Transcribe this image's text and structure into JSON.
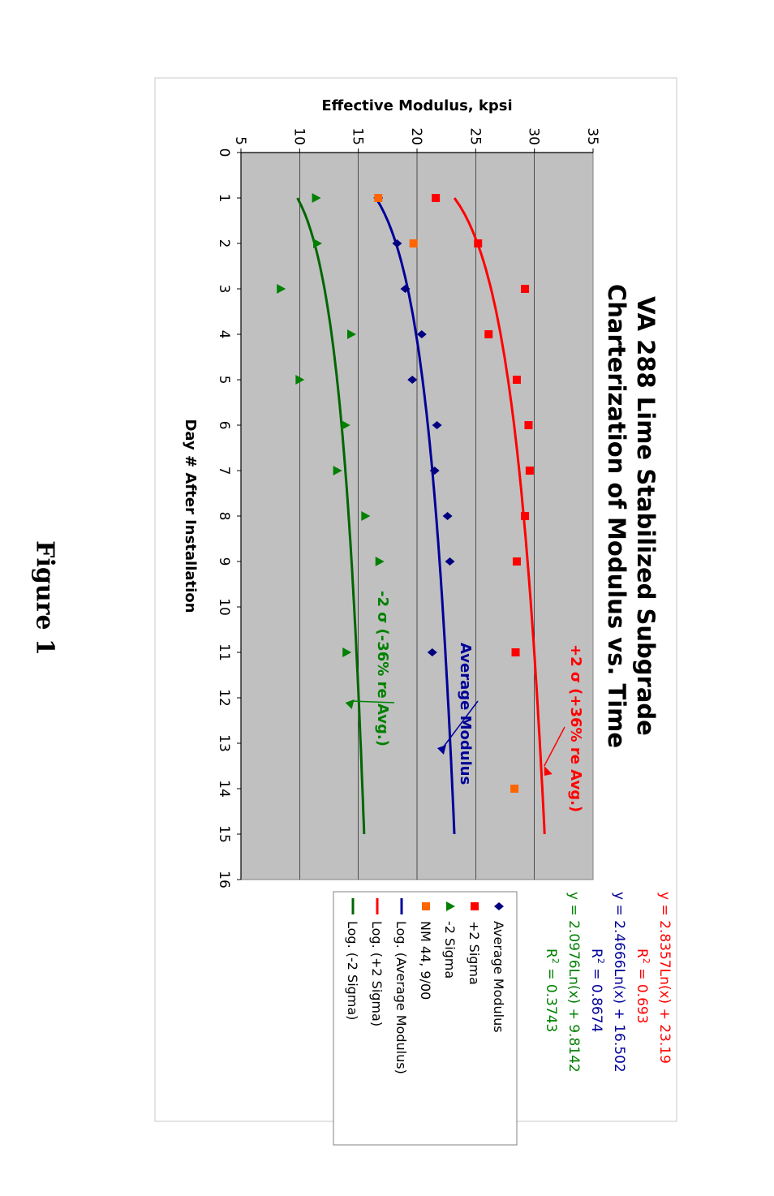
{
  "figure_label": "Figure 1",
  "chart_data": {
    "type": "scatter",
    "title": [
      "VA 288 Lime Stabilized Subgrade",
      "Charterization of Modulus vs. Time"
    ],
    "xlabel": "Day # After Installation",
    "ylabel": "Effective Modulus, kpsi",
    "xlim": [
      0,
      16
    ],
    "ylim": [
      5,
      35
    ],
    "x_ticks": [
      "0",
      "1",
      "2",
      "3",
      "4",
      "5",
      "6",
      "7",
      "8",
      "9",
      "10",
      "11",
      "12",
      "13",
      "14",
      "15",
      "16"
    ],
    "y_ticks": [
      "5",
      "10",
      "15",
      "20",
      "25",
      "30",
      "35"
    ],
    "grid": "horizontal",
    "plot_background": "#c0c0c0",
    "series": [
      {
        "name": "Average Modulus",
        "marker": "diamond",
        "color": "#000080",
        "x": [
          1,
          2,
          3,
          4,
          5,
          6,
          7,
          8,
          9,
          11
        ],
        "y": [
          16.7,
          18.3,
          19.0,
          20.4,
          19.6,
          21.7,
          21.5,
          22.6,
          22.8,
          21.3
        ]
      },
      {
        "name": "+2 Sigma",
        "marker": "square",
        "color": "#ff0000",
        "x": [
          1,
          2,
          3,
          4,
          5,
          6,
          7,
          8,
          9,
          11
        ],
        "y": [
          21.6,
          25.2,
          29.2,
          26.1,
          28.5,
          29.5,
          29.6,
          29.2,
          28.5,
          28.4
        ]
      },
      {
        "name": "-2 Sigma",
        "marker": "triangle",
        "color": "#008000",
        "x": [
          1,
          2,
          3,
          4,
          5,
          6,
          7,
          8,
          9,
          11
        ],
        "y": [
          11.4,
          11.5,
          8.4,
          14.4,
          10.0,
          13.9,
          13.2,
          15.6,
          16.8,
          14.0
        ]
      },
      {
        "name": "NM 44, 9/00",
        "marker": "square",
        "color": "#ff6600",
        "x": [
          1,
          2,
          14
        ],
        "y": [
          16.7,
          19.7,
          28.3
        ]
      }
    ],
    "trendlines": [
      {
        "name": "Log. (Average Modulus)",
        "color": "#000099",
        "a": 2.4666,
        "b": 16.502,
        "x_range": [
          1,
          15
        ]
      },
      {
        "name": "Log. (+2 Sigma)",
        "color": "#ff0000",
        "a": 2.8357,
        "b": 23.19,
        "x_range": [
          1,
          15
        ]
      },
      {
        "name": "Log. (-2 Sigma)",
        "color": "#006600",
        "a": 2.0976,
        "b": 9.8142,
        "x_range": [
          1,
          15
        ]
      }
    ],
    "equations": [
      {
        "eq": "y = 2.8357Ln(x) + 23.19",
        "r2_value": "= 0.693",
        "color": "#ff0000"
      },
      {
        "eq": "y = 2.4666Ln(x) + 16.502",
        "r2_value": "= 0.8674",
        "color": "#000099"
      },
      {
        "eq": "y = 2.0976Ln(x) + 9.8142",
        "r2_value": "= 0.3743",
        "color": "#008000"
      }
    ],
    "r2_label": "R",
    "r2_sup": "2",
    "annotations": [
      {
        "text": "+2 σ (+36% re Avg.)",
        "color": "#ff0000"
      },
      {
        "text": "Average Modulus",
        "color": "#000099"
      },
      {
        "text": "-2 σ (-36% re Avg.)",
        "color": "#008000"
      }
    ],
    "legend_position": "right",
    "legend": [
      {
        "label": "Average Modulus",
        "kind": "diamond",
        "color": "#000080"
      },
      {
        "label": "+2 Sigma",
        "kind": "square",
        "color": "#ff0000"
      },
      {
        "label": "-2 Sigma",
        "kind": "triangle",
        "color": "#008000"
      },
      {
        "label": "NM 44, 9/00",
        "kind": "square",
        "color": "#ff6600"
      },
      {
        "label": "Log. (Average Modulus)",
        "kind": "line",
        "color": "#000099"
      },
      {
        "label": "Log. (+2 Sigma)",
        "kind": "line",
        "color": "#ff0000"
      },
      {
        "label": "Log. (-2 Sigma)",
        "kind": "line",
        "color": "#006600"
      }
    ]
  }
}
